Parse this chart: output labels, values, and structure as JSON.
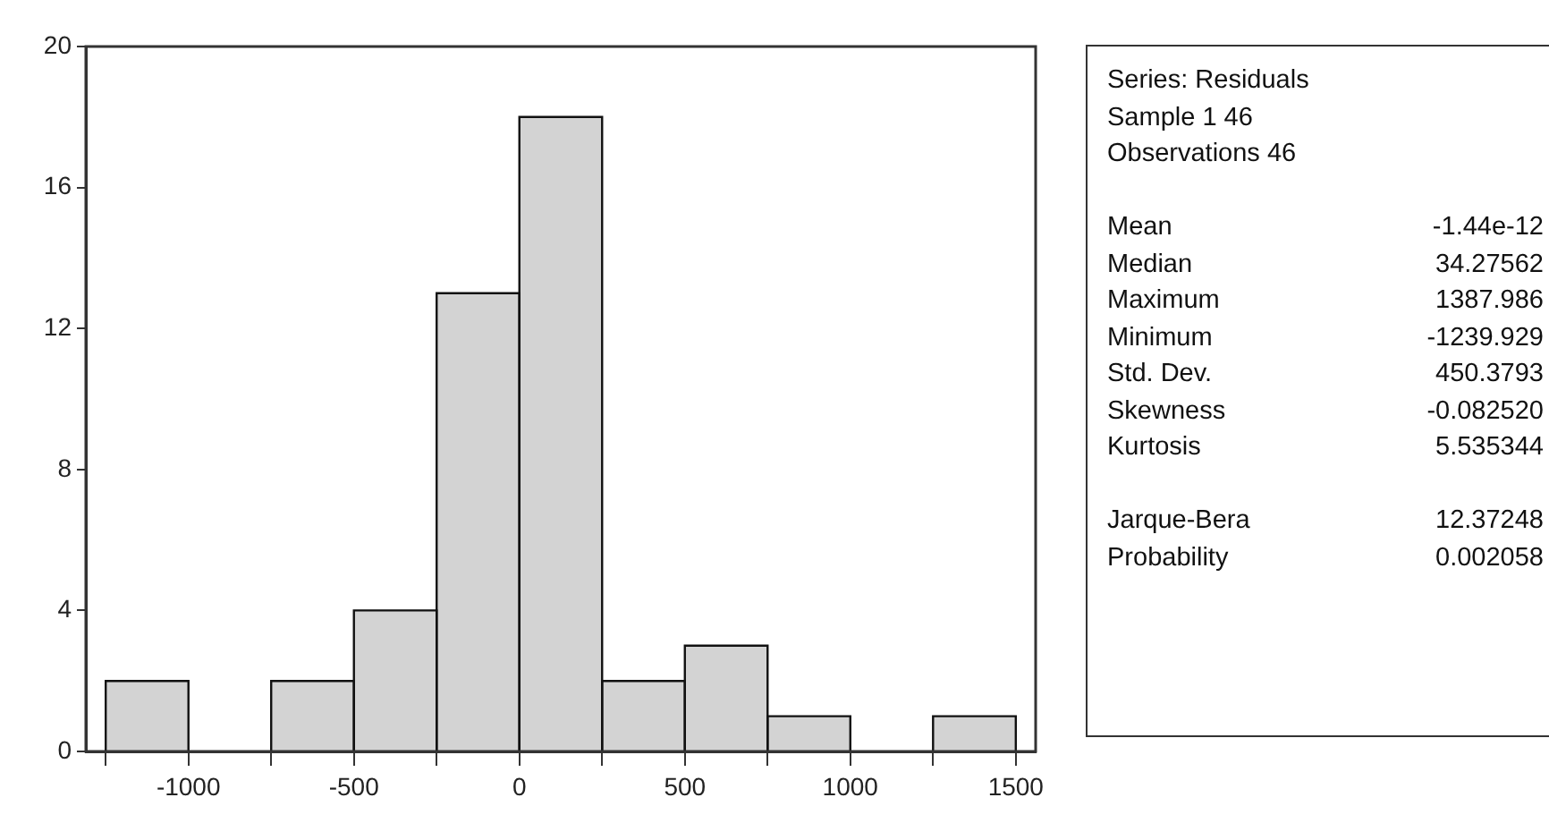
{
  "chart_data": [
    {
      "type": "histogram",
      "bins": [
        -1250,
        -1000,
        -750,
        -500,
        -250,
        0,
        250,
        500,
        750,
        1000,
        1250,
        1500
      ],
      "values": [
        2,
        0,
        2,
        4,
        13,
        18,
        2,
        3,
        1,
        0,
        1
      ],
      "color": "#d3d3d3",
      "xlim": [
        -1310,
        1560
      ],
      "xticks": [
        {
          "value": -1250,
          "label": null
        },
        -1000,
        {
          "value": -750,
          "label": null
        },
        -500,
        {
          "value": -250,
          "label": null
        },
        0,
        {
          "value": 250,
          "label": null
        },
        500,
        {
          "value": 750,
          "label": null
        },
        1000,
        {
          "value": 1250,
          "label": null
        },
        1500
      ],
      "ylim": [
        0,
        20
      ],
      "yticks": [
        0,
        4,
        8,
        12,
        16,
        20
      ],
      "grid": false,
      "legend": false
    },
    {
      "type": "other",
      "annotations": [
        "Series: Residuals",
        "Sample 1 46",
        "Observations 46",
        "Mean",
        "-1.44e-12",
        "Median",
        "34.27562",
        "Maximum",
        "1387.986",
        "Minimum",
        "-1239.929",
        "Std. Dev.",
        "450.3793",
        "Skewness",
        "-0.082520",
        "Kurtosis",
        "5.535344",
        "Jarque-Bera",
        "12.37248",
        "Probability",
        "0.002058"
      ]
    }
  ]
}
